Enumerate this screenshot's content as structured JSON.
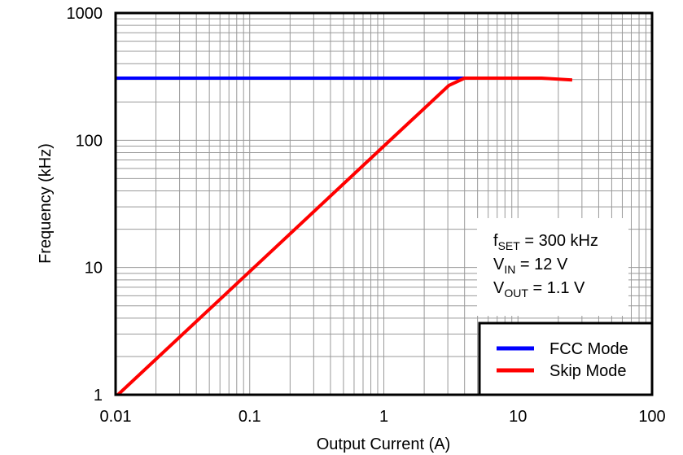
{
  "chart_data": {
    "type": "line",
    "title": "",
    "xlabel": "Output Current (A)",
    "ylabel": "Frequency (kHz)",
    "xscale": "log",
    "yscale": "log",
    "xlim": [
      0.01,
      100
    ],
    "ylim": [
      1,
      1000
    ],
    "xticks": [
      "0.01",
      "0.1",
      "1",
      "10",
      "100"
    ],
    "yticks": [
      "1",
      "10",
      "100",
      "1000"
    ],
    "grid": true,
    "legend_position": "lower right",
    "series": [
      {
        "name": "FCC Mode",
        "color": "#0000FF",
        "x": [
          0.01,
          4.0
        ],
        "y": [
          308,
          308
        ]
      },
      {
        "name": "Skip Mode",
        "color": "#FF0000",
        "x": [
          0.0104,
          0.1,
          1.0,
          3.06,
          4.0,
          15.0,
          25.4
        ],
        "y": [
          1.0,
          9.3,
          90,
          270,
          308,
          308,
          298
        ]
      }
    ],
    "annotations": [
      {
        "main": "f",
        "sub": "SET",
        "rest": " = 300 kHz"
      },
      {
        "main": "V",
        "sub": "IN",
        "rest": " = 12 V"
      },
      {
        "main": "V",
        "sub": "OUT",
        "rest": " = 1.1 V"
      }
    ]
  }
}
